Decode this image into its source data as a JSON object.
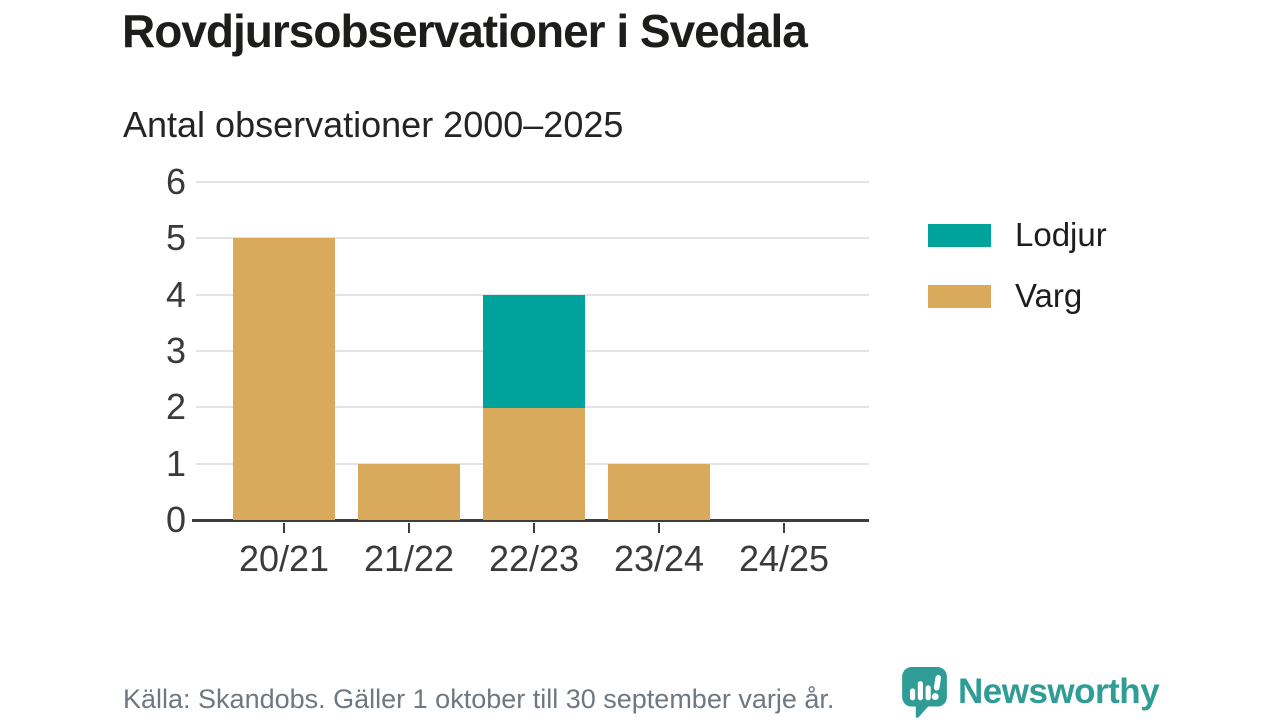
{
  "header": {
    "title": "Rovdjursobservationer i Svedala"
  },
  "chart_data": {
    "type": "bar",
    "stacked": true,
    "title": "Antal observationer 2000–2025",
    "categories": [
      "20/21",
      "21/22",
      "22/23",
      "23/24",
      "24/25"
    ],
    "series": [
      {
        "name": "Lodjur",
        "color": "#00a39b",
        "values": [
          0,
          0,
          2,
          0,
          0
        ]
      },
      {
        "name": "Varg",
        "color": "#d9a95c",
        "values": [
          5,
          1,
          2,
          1,
          0
        ]
      }
    ],
    "stack_order_bottom_to_top": [
      "Varg",
      "Lodjur"
    ],
    "totals": [
      5,
      1,
      4,
      1,
      0
    ],
    "ylim": [
      0,
      6
    ],
    "yticks": [
      0,
      1,
      2,
      3,
      4,
      5,
      6
    ],
    "xlabel": "",
    "ylabel": "",
    "grid": true,
    "legend_position": "right"
  },
  "footer": {
    "source": "Källa: Skandobs. Gäller 1 oktober till 30 september varje år.",
    "brand": "Newsworthy"
  },
  "colors": {
    "lodjur": "#00a39b",
    "varg": "#d9a95c",
    "axis": "#3d3d3d",
    "gridline": "#e4e4e4",
    "title_text": "#1d1d1b",
    "axis_text": "#3a3a3a",
    "muted_text": "#6e7882",
    "brand_teal": "#2f9d96"
  }
}
